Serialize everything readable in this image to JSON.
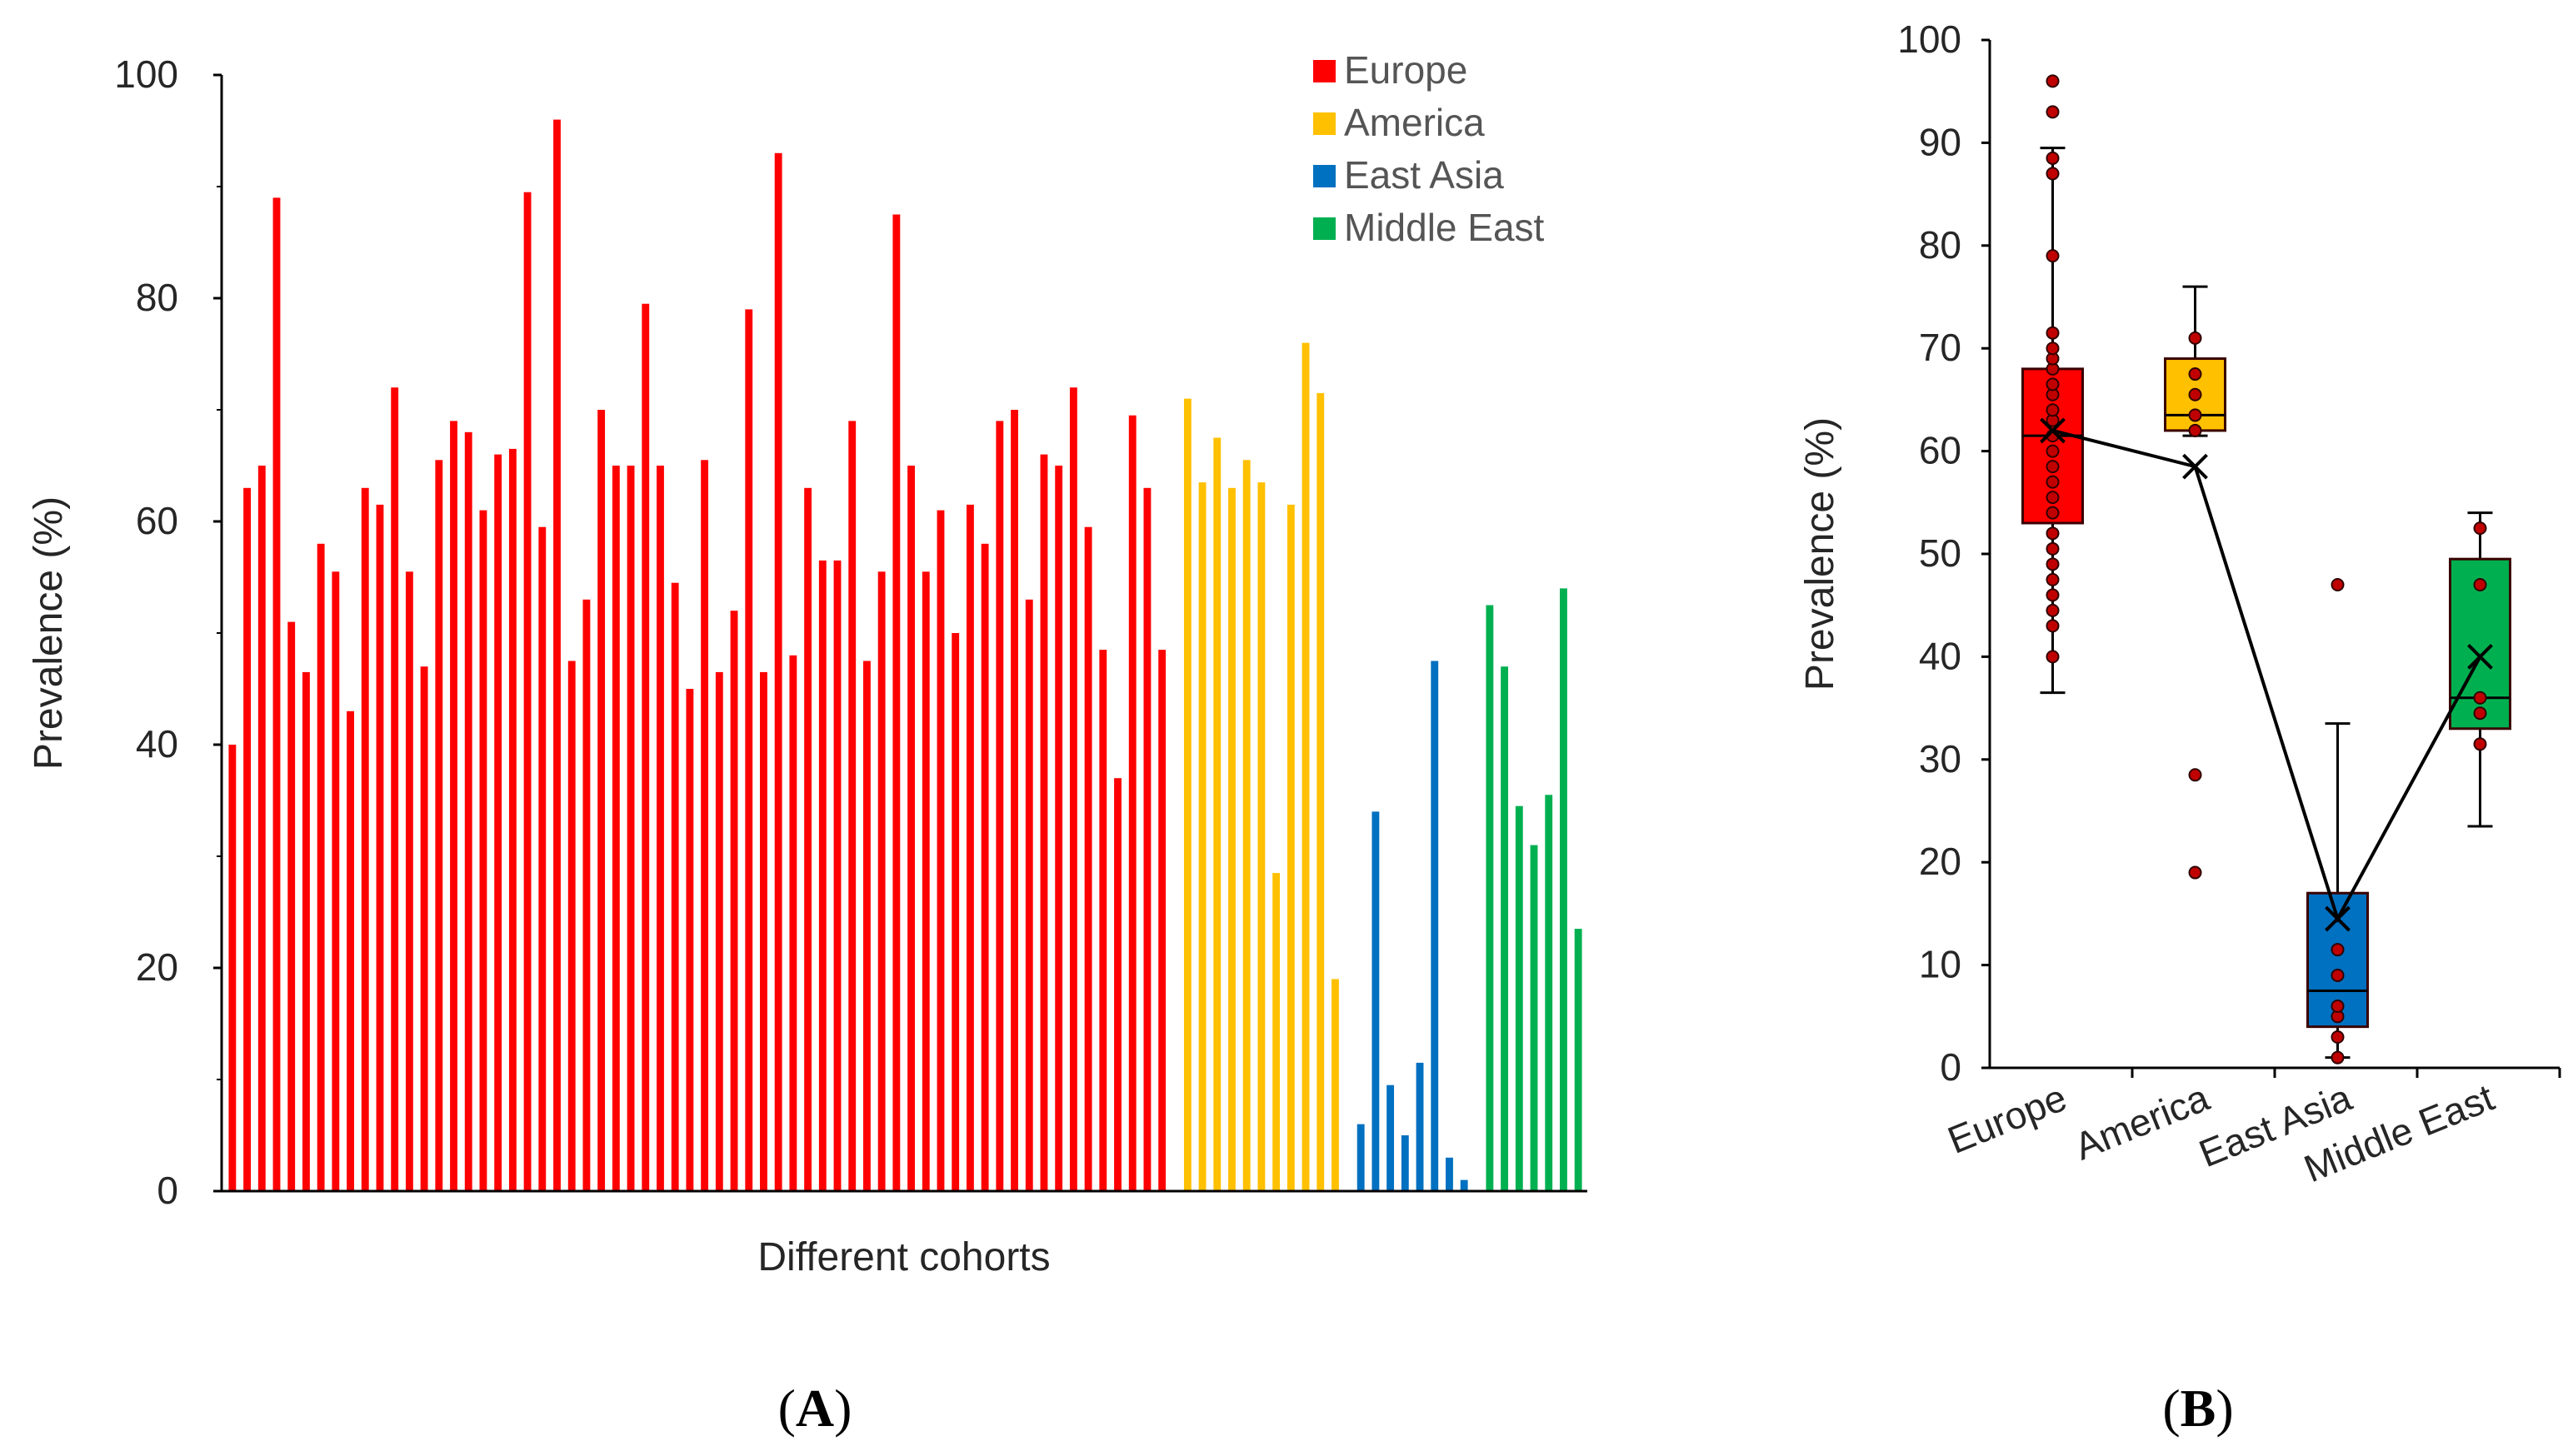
{
  "panels": {
    "a": {
      "open": "(",
      "letter": "A",
      "close": ")"
    },
    "b": {
      "open": "(",
      "letter": "B",
      "close": ")"
    }
  },
  "colors": {
    "Europe": "#ff0000",
    "America": "#ffc000",
    "East Asia": "#0070c0",
    "Middle East": "#00b050",
    "axis": "#000000",
    "box_border": "#3a0000",
    "point_fill": "#c00000"
  },
  "chart_data": [
    {
      "id": "A",
      "type": "bar",
      "title": "",
      "xlabel": "Different cohorts",
      "ylabel": "Prevalence (%)",
      "ylim": [
        0,
        100
      ],
      "yticks": [
        0,
        20,
        40,
        60,
        80,
        100
      ],
      "grid": false,
      "legend_position": "top-right",
      "legend": [
        "Europe",
        "America",
        "East Asia",
        "Middle East"
      ],
      "series": [
        {
          "name": "Europe",
          "values": [
            40,
            63,
            65,
            89,
            51,
            46.5,
            58,
            55.5,
            43,
            63,
            61.5,
            72,
            55.5,
            47,
            65.5,
            69,
            68,
            61,
            66,
            66.5,
            89.5,
            59.5,
            96,
            47.5,
            53,
            70,
            65,
            65,
            79.5,
            65,
            54.5,
            45,
            65.5,
            46.5,
            52,
            79,
            46.5,
            93,
            48,
            63,
            56.5,
            56.5,
            69,
            47.5,
            55.5,
            87.5,
            65,
            55.5,
            61,
            50,
            61.5,
            58,
            69,
            70,
            53,
            66,
            65,
            72,
            59.5,
            48.5,
            37,
            69.5,
            63,
            48.5
          ]
        },
        {
          "name": "America",
          "values": [
            71,
            63.5,
            67.5,
            63,
            65.5,
            63.5,
            28.5,
            61.5,
            76,
            71.5,
            19
          ]
        },
        {
          "name": "East Asia",
          "values": [
            6,
            34,
            9.5,
            5,
            11.5,
            47.5,
            3,
            1
          ]
        },
        {
          "name": "Middle East",
          "values": [
            52.5,
            47,
            34.5,
            31,
            35.5,
            54,
            23.5
          ]
        }
      ]
    },
    {
      "id": "B",
      "type": "box",
      "title": "",
      "xlabel": "",
      "ylabel": "Prevalence (%)",
      "ylim": [
        0,
        100
      ],
      "yticks": [
        0,
        10,
        20,
        30,
        40,
        50,
        60,
        70,
        80,
        90,
        100
      ],
      "grid": false,
      "categories": [
        "Europe",
        "America",
        "East Asia",
        "Middle East"
      ],
      "boxes": [
        {
          "name": "Europe",
          "whisker_low": 36.5,
          "q1": 53,
          "median": 61.5,
          "q3": 68,
          "whisker_high": 89.5,
          "mean": 62,
          "points": [
            40,
            43,
            44.5,
            46,
            47.5,
            49,
            50.5,
            52,
            54,
            55.5,
            57,
            58.5,
            60,
            61.5,
            63,
            64,
            65.5,
            66.5,
            68,
            69,
            70,
            71.5,
            79,
            87,
            88.5,
            93,
            96
          ]
        },
        {
          "name": "America",
          "whisker_low": 61.5,
          "q1": 62,
          "median": 63.5,
          "q3": 69,
          "whisker_high": 76,
          "mean": 58.5,
          "points": [
            19,
            28.5,
            62,
            63.5,
            65.5,
            67.5,
            71
          ]
        },
        {
          "name": "East Asia",
          "whisker_low": 1,
          "q1": 4,
          "median": 7.5,
          "q3": 17,
          "whisker_high": 33.5,
          "mean": 14.5,
          "points": [
            1,
            3,
            5,
            6,
            9,
            11.5,
            47
          ]
        },
        {
          "name": "Middle East",
          "whisker_low": 23.5,
          "q1": 33,
          "median": 36,
          "q3": 49.5,
          "whisker_high": 54,
          "mean": 40,
          "points": [
            31.5,
            34.5,
            36,
            47,
            52.5
          ]
        }
      ]
    }
  ]
}
